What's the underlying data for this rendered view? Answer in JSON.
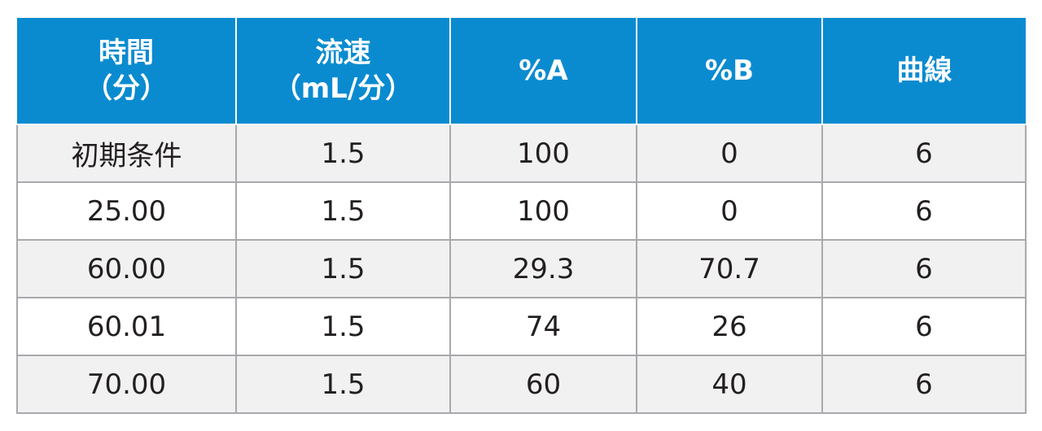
{
  "table": {
    "headers": [
      {
        "line1": "時間",
        "line2": "（分）"
      },
      {
        "line1": "流速",
        "line2": "（mL/分）"
      },
      {
        "line1": "%A",
        "line2": ""
      },
      {
        "line1": "%B",
        "line2": ""
      },
      {
        "line1": "曲線",
        "line2": ""
      }
    ],
    "rows": [
      [
        "初期条件",
        "1.5",
        "100",
        "0",
        "6"
      ],
      [
        "25.00",
        "1.5",
        "100",
        "0",
        "6"
      ],
      [
        "60.00",
        "1.5",
        "29.3",
        "70.7",
        "6"
      ],
      [
        "60.01",
        "1.5",
        "74",
        "26",
        "6"
      ],
      [
        "70.00",
        "1.5",
        "60",
        "40",
        "6"
      ]
    ],
    "colors": {
      "header_bg": "#0a8bd0",
      "header_text": "#ffffff",
      "row_alt_bg": "#f1f1f2",
      "row_bg": "#ffffff",
      "border": "#a7a9ac",
      "body_text": "#231f20"
    }
  }
}
